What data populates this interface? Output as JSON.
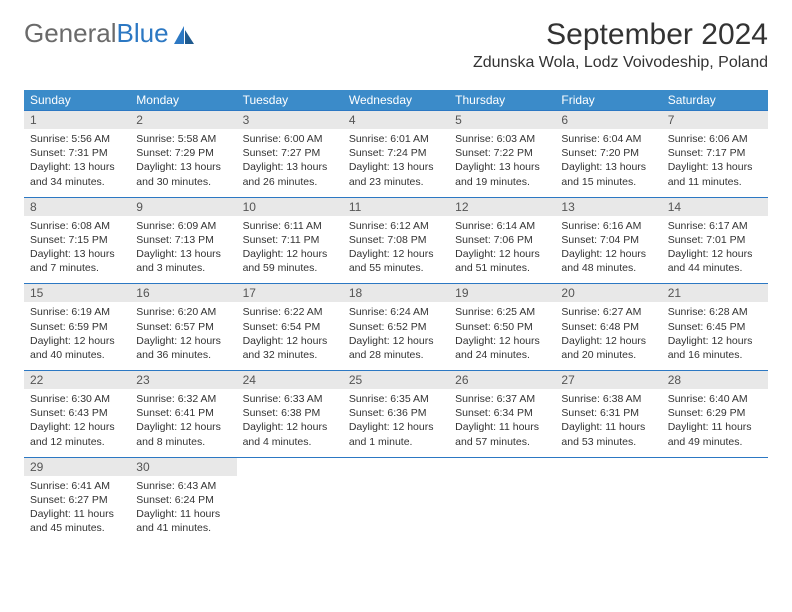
{
  "brand": {
    "part1": "General",
    "part2": "Blue"
  },
  "header": {
    "month_title": "September 2024",
    "location": "Zdunska Wola, Lodz Voivodeship, Poland"
  },
  "colors": {
    "header_bg": "#3b8bc9",
    "daynum_bg": "#e8e8e8",
    "border": "#2c78c3",
    "text": "#333333",
    "brand_gray": "#6a6a6a",
    "brand_blue": "#2c78c3"
  },
  "day_names": [
    "Sunday",
    "Monday",
    "Tuesday",
    "Wednesday",
    "Thursday",
    "Friday",
    "Saturday"
  ],
  "weeks": [
    [
      {
        "n": "1",
        "sr": "Sunrise: 5:56 AM",
        "ss": "Sunset: 7:31 PM",
        "dl": "Daylight: 13 hours and 34 minutes."
      },
      {
        "n": "2",
        "sr": "Sunrise: 5:58 AM",
        "ss": "Sunset: 7:29 PM",
        "dl": "Daylight: 13 hours and 30 minutes."
      },
      {
        "n": "3",
        "sr": "Sunrise: 6:00 AM",
        "ss": "Sunset: 7:27 PM",
        "dl": "Daylight: 13 hours and 26 minutes."
      },
      {
        "n": "4",
        "sr": "Sunrise: 6:01 AM",
        "ss": "Sunset: 7:24 PM",
        "dl": "Daylight: 13 hours and 23 minutes."
      },
      {
        "n": "5",
        "sr": "Sunrise: 6:03 AM",
        "ss": "Sunset: 7:22 PM",
        "dl": "Daylight: 13 hours and 19 minutes."
      },
      {
        "n": "6",
        "sr": "Sunrise: 6:04 AM",
        "ss": "Sunset: 7:20 PM",
        "dl": "Daylight: 13 hours and 15 minutes."
      },
      {
        "n": "7",
        "sr": "Sunrise: 6:06 AM",
        "ss": "Sunset: 7:17 PM",
        "dl": "Daylight: 13 hours and 11 minutes."
      }
    ],
    [
      {
        "n": "8",
        "sr": "Sunrise: 6:08 AM",
        "ss": "Sunset: 7:15 PM",
        "dl": "Daylight: 13 hours and 7 minutes."
      },
      {
        "n": "9",
        "sr": "Sunrise: 6:09 AM",
        "ss": "Sunset: 7:13 PM",
        "dl": "Daylight: 13 hours and 3 minutes."
      },
      {
        "n": "10",
        "sr": "Sunrise: 6:11 AM",
        "ss": "Sunset: 7:11 PM",
        "dl": "Daylight: 12 hours and 59 minutes."
      },
      {
        "n": "11",
        "sr": "Sunrise: 6:12 AM",
        "ss": "Sunset: 7:08 PM",
        "dl": "Daylight: 12 hours and 55 minutes."
      },
      {
        "n": "12",
        "sr": "Sunrise: 6:14 AM",
        "ss": "Sunset: 7:06 PM",
        "dl": "Daylight: 12 hours and 51 minutes."
      },
      {
        "n": "13",
        "sr": "Sunrise: 6:16 AM",
        "ss": "Sunset: 7:04 PM",
        "dl": "Daylight: 12 hours and 48 minutes."
      },
      {
        "n": "14",
        "sr": "Sunrise: 6:17 AM",
        "ss": "Sunset: 7:01 PM",
        "dl": "Daylight: 12 hours and 44 minutes."
      }
    ],
    [
      {
        "n": "15",
        "sr": "Sunrise: 6:19 AM",
        "ss": "Sunset: 6:59 PM",
        "dl": "Daylight: 12 hours and 40 minutes."
      },
      {
        "n": "16",
        "sr": "Sunrise: 6:20 AM",
        "ss": "Sunset: 6:57 PM",
        "dl": "Daylight: 12 hours and 36 minutes."
      },
      {
        "n": "17",
        "sr": "Sunrise: 6:22 AM",
        "ss": "Sunset: 6:54 PM",
        "dl": "Daylight: 12 hours and 32 minutes."
      },
      {
        "n": "18",
        "sr": "Sunrise: 6:24 AM",
        "ss": "Sunset: 6:52 PM",
        "dl": "Daylight: 12 hours and 28 minutes."
      },
      {
        "n": "19",
        "sr": "Sunrise: 6:25 AM",
        "ss": "Sunset: 6:50 PM",
        "dl": "Daylight: 12 hours and 24 minutes."
      },
      {
        "n": "20",
        "sr": "Sunrise: 6:27 AM",
        "ss": "Sunset: 6:48 PM",
        "dl": "Daylight: 12 hours and 20 minutes."
      },
      {
        "n": "21",
        "sr": "Sunrise: 6:28 AM",
        "ss": "Sunset: 6:45 PM",
        "dl": "Daylight: 12 hours and 16 minutes."
      }
    ],
    [
      {
        "n": "22",
        "sr": "Sunrise: 6:30 AM",
        "ss": "Sunset: 6:43 PM",
        "dl": "Daylight: 12 hours and 12 minutes."
      },
      {
        "n": "23",
        "sr": "Sunrise: 6:32 AM",
        "ss": "Sunset: 6:41 PM",
        "dl": "Daylight: 12 hours and 8 minutes."
      },
      {
        "n": "24",
        "sr": "Sunrise: 6:33 AM",
        "ss": "Sunset: 6:38 PM",
        "dl": "Daylight: 12 hours and 4 minutes."
      },
      {
        "n": "25",
        "sr": "Sunrise: 6:35 AM",
        "ss": "Sunset: 6:36 PM",
        "dl": "Daylight: 12 hours and 1 minute."
      },
      {
        "n": "26",
        "sr": "Sunrise: 6:37 AM",
        "ss": "Sunset: 6:34 PM",
        "dl": "Daylight: 11 hours and 57 minutes."
      },
      {
        "n": "27",
        "sr": "Sunrise: 6:38 AM",
        "ss": "Sunset: 6:31 PM",
        "dl": "Daylight: 11 hours and 53 minutes."
      },
      {
        "n": "28",
        "sr": "Sunrise: 6:40 AM",
        "ss": "Sunset: 6:29 PM",
        "dl": "Daylight: 11 hours and 49 minutes."
      }
    ],
    [
      {
        "n": "29",
        "sr": "Sunrise: 6:41 AM",
        "ss": "Sunset: 6:27 PM",
        "dl": "Daylight: 11 hours and 45 minutes."
      },
      {
        "n": "30",
        "sr": "Sunrise: 6:43 AM",
        "ss": "Sunset: 6:24 PM",
        "dl": "Daylight: 11 hours and 41 minutes."
      }
    ]
  ]
}
